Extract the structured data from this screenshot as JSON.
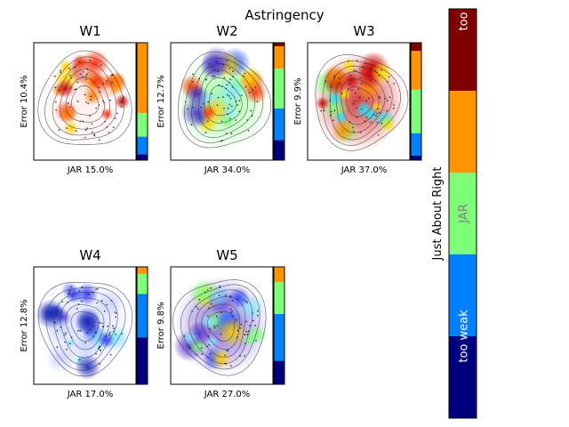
{
  "chart_data": {
    "type": "heatmap",
    "title": "Astringency",
    "panels": [
      {
        "title": "W1",
        "ylabel": "Error 10.4%",
        "xlabel": "JAR 15.0%",
        "theme": "red",
        "bar": [
          0.05,
          0.15,
          0.2,
          0.6
        ]
      },
      {
        "title": "W2",
        "ylabel": "Error 12.7%",
        "xlabel": "JAR 34.0%",
        "theme": "mixed",
        "bar": [
          0.17,
          0.27,
          0.34,
          0.19,
          0.03
        ]
      },
      {
        "title": "W3",
        "ylabel": "Error 9.9%",
        "xlabel": "JAR 37.0%",
        "theme": "mixed-warm",
        "bar": [
          0.04,
          0.19,
          0.37,
          0.33,
          0.07
        ]
      },
      {
        "title": "W4",
        "ylabel": "Error 12.8%",
        "xlabel": "JAR 17.0%",
        "theme": "blue",
        "bar": [
          0.4,
          0.37,
          0.17,
          0.06
        ]
      },
      {
        "title": "W5",
        "ylabel": "Error 9.8%",
        "xlabel": "JAR 27.0%",
        "theme": "mixed-blue",
        "bar": [
          0.2,
          0.4,
          0.27,
          0.13
        ]
      }
    ],
    "colorbar": {
      "label": "Just About Right",
      "segments": [
        {
          "label": "too weak",
          "color": "#00007f"
        },
        {
          "label": "too weak",
          "color": "#0080ff"
        },
        {
          "label": "JAR",
          "color": "#7dff7a"
        },
        {
          "label": "",
          "color": "#ff9400"
        },
        {
          "label": "too strong",
          "color": "#7f0000"
        }
      ],
      "tick_labels": [
        "too weak",
        "JAR",
        "too"
      ]
    },
    "bar_colors_bottom_up": [
      "#00007f",
      "#0080ff",
      "#7dff7a",
      "#ff9400",
      "#7f0000"
    ]
  }
}
